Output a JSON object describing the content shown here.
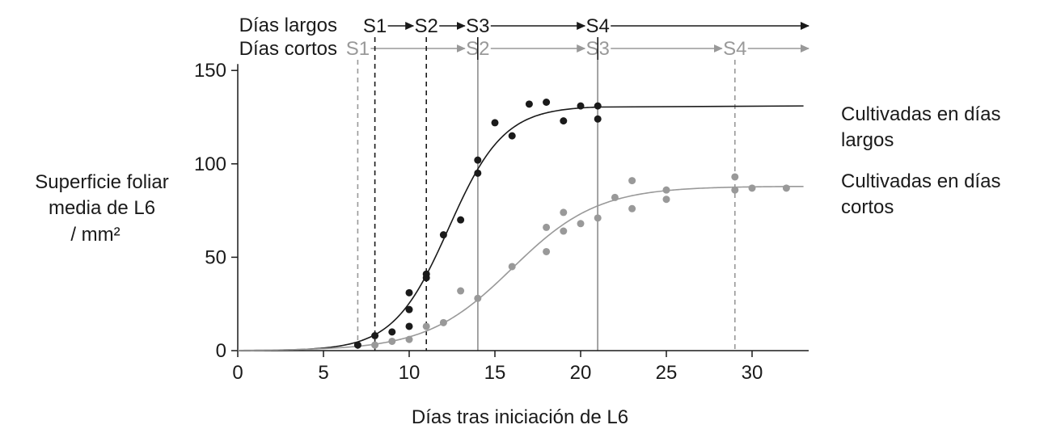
{
  "stage_rows": [
    {
      "row_label": "Días largos",
      "color": "#1a1a1a",
      "stages": [
        {
          "label": "S1",
          "day": 8
        },
        {
          "label": "S2",
          "day": 11
        },
        {
          "label": "S3",
          "day": 14
        },
        {
          "label": "S4",
          "day": 21
        }
      ]
    },
    {
      "row_label": "Días cortos",
      "color": "#999999",
      "stages": [
        {
          "label": "S1",
          "day": 7
        },
        {
          "label": "S2",
          "day": 14
        },
        {
          "label": "S3",
          "day": 21
        },
        {
          "label": "S4",
          "day": 29
        }
      ]
    }
  ],
  "chart_data": {
    "type": "scatter",
    "title": "",
    "xlabel": "Días tras iniciación de L6",
    "ylabel": [
      "Superficie foliar",
      "media de L6",
      "/ mm²"
    ],
    "xlim": [
      0,
      33
    ],
    "ylim": [
      0,
      150
    ],
    "xticks": [
      0,
      5,
      10,
      15,
      20,
      25,
      30
    ],
    "yticks": [
      0,
      50,
      100,
      150
    ],
    "grid": false,
    "series": [
      {
        "name": "Cultivadas en días largos",
        "legend_lines": [
          "Cultivadas en días",
          "largos"
        ],
        "color": "#1a1a1a",
        "points": [
          [
            7,
            3
          ],
          [
            8,
            8
          ],
          [
            9,
            10
          ],
          [
            10,
            13
          ],
          [
            10,
            22
          ],
          [
            10,
            31
          ],
          [
            11,
            39
          ],
          [
            11,
            41
          ],
          [
            12,
            62
          ],
          [
            13,
            70
          ],
          [
            14,
            95
          ],
          [
            14,
            102
          ],
          [
            15,
            122
          ],
          [
            16,
            115
          ],
          [
            17,
            132
          ],
          [
            18,
            133
          ],
          [
            19,
            123
          ],
          [
            20,
            131
          ],
          [
            21,
            131
          ],
          [
            21,
            124
          ]
        ],
        "plateau": 131
      },
      {
        "name": "Cultivadas en días cortos",
        "legend_lines": [
          "Cultivadas en días",
          "cortos"
        ],
        "color": "#999999",
        "points": [
          [
            8,
            3
          ],
          [
            9,
            5
          ],
          [
            10,
            6
          ],
          [
            11,
            13
          ],
          [
            12,
            15
          ],
          [
            13,
            32
          ],
          [
            14,
            28
          ],
          [
            16,
            45
          ],
          [
            18,
            53
          ],
          [
            18,
            66
          ],
          [
            19,
            64
          ],
          [
            19,
            74
          ],
          [
            20,
            68
          ],
          [
            21,
            71
          ],
          [
            22,
            82
          ],
          [
            23,
            76
          ],
          [
            23,
            91
          ],
          [
            25,
            81
          ],
          [
            25,
            86
          ],
          [
            29,
            86
          ],
          [
            29,
            93
          ],
          [
            30,
            87
          ],
          [
            32,
            87
          ]
        ],
        "plateau": 88
      }
    ]
  }
}
